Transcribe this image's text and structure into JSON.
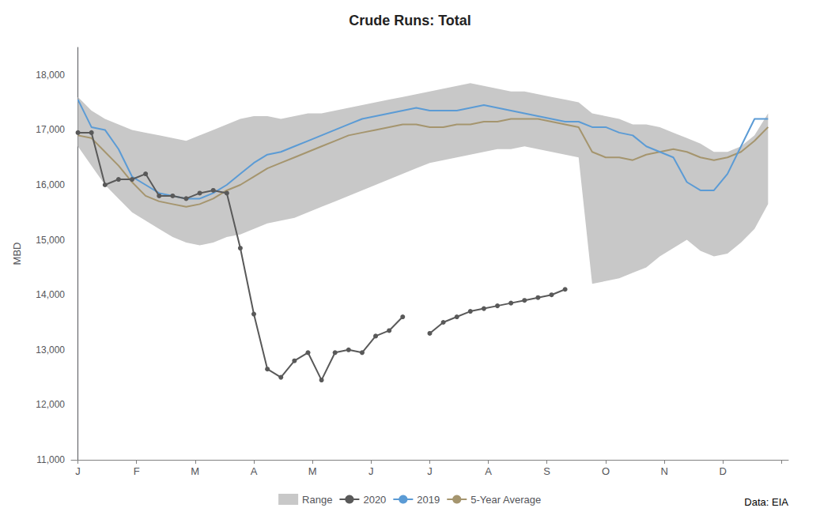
{
  "chart_data": {
    "type": "line",
    "title": "Crude Runs: Total",
    "ylabel": "MBD",
    "annotation": "Data: EIA",
    "xlim": [
      -0.5,
      52.5
    ],
    "xticks": [
      {
        "value": 0,
        "label": "J"
      },
      {
        "value": 4.33,
        "label": "F"
      },
      {
        "value": 8.66,
        "label": "M"
      },
      {
        "value": 13.0,
        "label": "A"
      },
      {
        "value": 17.33,
        "label": "M"
      },
      {
        "value": 21.66,
        "label": "J"
      },
      {
        "value": 26.0,
        "label": "J"
      },
      {
        "value": 30.33,
        "label": "A"
      },
      {
        "value": 34.66,
        "label": "S"
      },
      {
        "value": 39.0,
        "label": "O"
      },
      {
        "value": 43.33,
        "label": "N"
      },
      {
        "value": 47.66,
        "label": "D"
      },
      {
        "value": 52.0,
        "label": ""
      }
    ],
    "ylim": [
      11000,
      18500
    ],
    "yticks": [
      {
        "value": 11000,
        "label": "11,000"
      },
      {
        "value": 12000,
        "label": "12,000"
      },
      {
        "value": 13000,
        "label": "13,000"
      },
      {
        "value": 14000,
        "label": "14,000"
      },
      {
        "value": 15000,
        "label": "15,000"
      },
      {
        "value": 16000,
        "label": "16,000"
      },
      {
        "value": 17000,
        "label": "17,000"
      },
      {
        "value": 18000,
        "label": "18,000"
      }
    ],
    "grid": false,
    "legend": "bottom",
    "x": [
      0,
      1,
      2,
      3,
      4,
      5,
      6,
      7,
      8,
      9,
      10,
      11,
      12,
      13,
      14,
      15,
      16,
      17,
      18,
      19,
      20,
      21,
      22,
      23,
      24,
      25,
      26,
      27,
      28,
      29,
      30,
      31,
      32,
      33,
      34,
      35,
      36,
      37,
      38,
      39,
      40,
      41,
      42,
      43,
      44,
      45,
      46,
      47,
      48,
      49,
      50,
      51
    ],
    "series": [
      {
        "name": "Range",
        "type": "area",
        "color": "#C8C8C8",
        "upper": [
          17600,
          17350,
          17200,
          17100,
          17000,
          16950,
          16900,
          16850,
          16800,
          16900,
          17000,
          17100,
          17200,
          17250,
          17250,
          17200,
          17250,
          17300,
          17300,
          17350,
          17400,
          17450,
          17500,
          17550,
          17600,
          17650,
          17700,
          17750,
          17800,
          17850,
          17800,
          17750,
          17700,
          17700,
          17650,
          17600,
          17550,
          17500,
          17300,
          17250,
          17200,
          17100,
          17100,
          17050,
          16950,
          16850,
          16750,
          16600,
          16600,
          16700,
          16900,
          17300
        ],
        "lower": [
          16700,
          16350,
          16000,
          15750,
          15500,
          15350,
          15200,
          15050,
          14950,
          14900,
          14950,
          15050,
          15100,
          15200,
          15300,
          15350,
          15400,
          15500,
          15600,
          15700,
          15800,
          15900,
          16000,
          16100,
          16200,
          16300,
          16400,
          16450,
          16500,
          16550,
          16600,
          16650,
          16650,
          16700,
          16650,
          16600,
          16550,
          16500,
          14200,
          14250,
          14300,
          14400,
          14500,
          14700,
          14850,
          15000,
          14800,
          14700,
          14750,
          14950,
          15200,
          15650
        ]
      },
      {
        "name": "2020",
        "type": "line",
        "color": "#595959",
        "marker": "circle",
        "values": [
          16950,
          16950,
          16000,
          16100,
          16100,
          16200,
          15800,
          15800,
          15750,
          15850,
          15900,
          15850,
          14850,
          13650,
          12650,
          12500,
          12800,
          12950,
          12450,
          12950,
          13000,
          12950,
          13250,
          13350,
          13600,
          null,
          13300,
          13500,
          13600,
          13700,
          13750,
          13800,
          13850,
          13900,
          13950,
          14000,
          14100,
          null,
          null,
          null,
          null,
          null,
          null,
          null,
          null,
          null,
          null,
          null,
          null,
          null,
          null,
          null
        ]
      },
      {
        "name": "2019",
        "type": "line",
        "color": "#5B9BD5",
        "values": [
          17550,
          17050,
          17000,
          16650,
          16150,
          16000,
          15850,
          15800,
          15750,
          15750,
          15850,
          16000,
          16200,
          16400,
          16550,
          16600,
          16700,
          16800,
          16900,
          17000,
          17100,
          17200,
          17250,
          17300,
          17350,
          17400,
          17350,
          17350,
          17350,
          17400,
          17450,
          17400,
          17350,
          17300,
          17250,
          17200,
          17150,
          17150,
          17050,
          17050,
          16950,
          16900,
          16700,
          16600,
          16500,
          16050,
          15900,
          15900,
          16200,
          16700,
          17200,
          17200
        ]
      },
      {
        "name": "5-Year Average",
        "type": "line",
        "color": "#A5956E",
        "values": [
          16900,
          16850,
          16600,
          16350,
          16050,
          15800,
          15700,
          15650,
          15600,
          15650,
          15750,
          15900,
          16000,
          16150,
          16300,
          16400,
          16500,
          16600,
          16700,
          16800,
          16900,
          16950,
          17000,
          17050,
          17100,
          17100,
          17050,
          17050,
          17100,
          17100,
          17150,
          17150,
          17200,
          17200,
          17200,
          17150,
          17100,
          17050,
          16600,
          16500,
          16500,
          16450,
          16550,
          16600,
          16650,
          16600,
          16500,
          16450,
          16500,
          16600,
          16800,
          17050
        ]
      }
    ]
  }
}
